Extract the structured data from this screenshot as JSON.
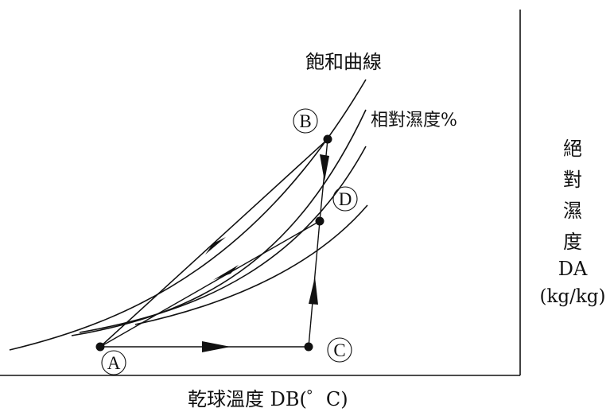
{
  "diagram": {
    "saturation_label": "飽和曲線",
    "rh_label": "相對濕度%",
    "xlabel": "乾球溫度 DB(゜C)",
    "ylabel_chars": [
      "絕",
      "對",
      "濕",
      "度"
    ],
    "ylabel_abbrev": "DA",
    "ylabel_unit": "(kg/kg)",
    "points": [
      {
        "id": "A",
        "label": "A"
      },
      {
        "id": "B",
        "label": "B"
      },
      {
        "id": "C",
        "label": "C"
      },
      {
        "id": "D",
        "label": "D"
      }
    ]
  }
}
